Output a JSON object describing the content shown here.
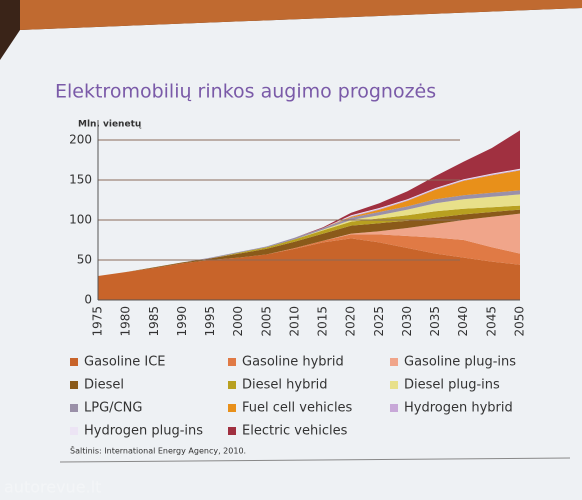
{
  "chart_data": {
    "type": "stacked_area",
    "title": "Elektromobilių rinkos augimo prognozės",
    "y_label": "Mln. vienetų",
    "source": "Šaltinis: International Energy Agency, 2010.",
    "watermark": "autorevue.lt",
    "categories": [
      "1975",
      "1980",
      "1985",
      "1990",
      "1995",
      "2000",
      "2005",
      "2010",
      "2015",
      "2020",
      "2025",
      "2030",
      "2035",
      "2040",
      "2045",
      "2050"
    ],
    "ylim": [
      0,
      225
    ],
    "yticks": [
      0,
      50,
      100,
      150,
      200
    ],
    "grid": true,
    "series": [
      {
        "name": "Gasoline ICE",
        "color": "#c8642a",
        "values": [
          30,
          35,
          40,
          46,
          50,
          53,
          57,
          64,
          72,
          77,
          72,
          65,
          58,
          53,
          48,
          44
        ]
      },
      {
        "name": "Gasoline hybrid",
        "color": "#e07a45",
        "values": [
          0,
          0,
          0,
          0,
          0,
          0,
          0,
          1,
          2,
          5,
          10,
          15,
          20,
          22,
          18,
          14
        ]
      },
      {
        "name": "Gasoline plug-ins",
        "color": "#f0a58a",
        "values": [
          0,
          0,
          0,
          0,
          0,
          0,
          0,
          0,
          0,
          1,
          4,
          10,
          17,
          25,
          38,
          50
        ]
      },
      {
        "name": "Diesel",
        "color": "#8a5a1a",
        "values": [
          0,
          0,
          1,
          1,
          2,
          5,
          7,
          8,
          9,
          10,
          10,
          9,
          8,
          7,
          6,
          5
        ]
      },
      {
        "name": "Diesel hybrid",
        "color": "#b8a020",
        "values": [
          0,
          0,
          0,
          0,
          0,
          1,
          2,
          3,
          4,
          5,
          6,
          7,
          8,
          7,
          6,
          5
        ]
      },
      {
        "name": "Diesel plug-ins",
        "color": "#e8e08a",
        "values": [
          0,
          0,
          0,
          0,
          0,
          0,
          0,
          0,
          1,
          2,
          4,
          7,
          10,
          12,
          13,
          14
        ]
      },
      {
        "name": "LPG/CNG",
        "color": "#9a90a8",
        "values": [
          0,
          0,
          0,
          0,
          1,
          1,
          1,
          2,
          2,
          3,
          4,
          4,
          5,
          5,
          5,
          5
        ]
      },
      {
        "name": "Fuel cell vehicles",
        "color": "#e8901a",
        "values": [
          0,
          0,
          0,
          0,
          0,
          0,
          0,
          0,
          0,
          1,
          3,
          7,
          12,
          18,
          22,
          25
        ]
      },
      {
        "name": "Hydrogen hybrid",
        "color": "#c8a8d8",
        "values": [
          0,
          0,
          0,
          0,
          0,
          0,
          0,
          0,
          0,
          1,
          1,
          1,
          1,
          1,
          1,
          1
        ]
      },
      {
        "name": "Hydrogen plug-ins",
        "color": "#ece4f4",
        "values": [
          0,
          0,
          0,
          0,
          0,
          0,
          0,
          0,
          0,
          1,
          1,
          1,
          1,
          1,
          1,
          1
        ]
      },
      {
        "name": "Electric vehicles",
        "color": "#a03040",
        "values": [
          0,
          0,
          0,
          0,
          0,
          0,
          0,
          0,
          1,
          3,
          6,
          10,
          15,
          22,
          32,
          48
        ]
      }
    ]
  }
}
